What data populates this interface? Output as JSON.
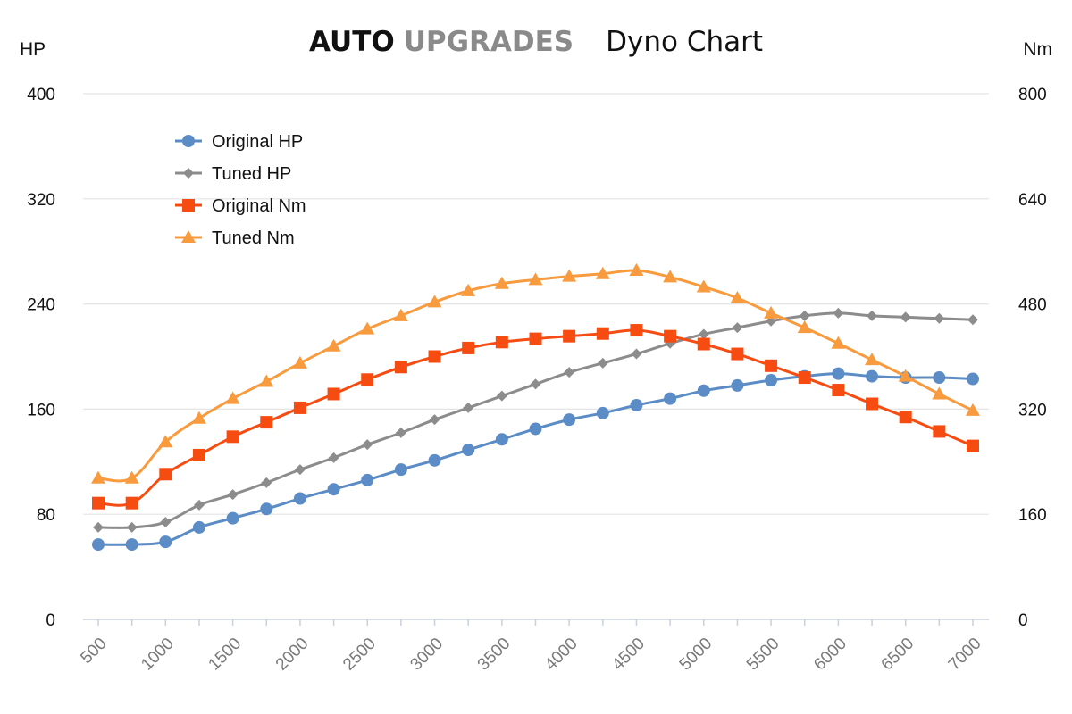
{
  "title": {
    "brand_part1": "AUTO",
    "brand_part2": "UPGRADES",
    "text": "Dyno Chart"
  },
  "chart_data": {
    "type": "line",
    "x": [
      500,
      750,
      1000,
      1250,
      1500,
      1750,
      2000,
      2250,
      2500,
      2750,
      3000,
      3250,
      3500,
      3750,
      4000,
      4250,
      4500,
      4750,
      5000,
      5250,
      5500,
      5750,
      6000,
      6250,
      6500,
      6750,
      7000
    ],
    "x_ticks": [
      "500",
      "1000",
      "1500",
      "2000",
      "2500",
      "3000",
      "3500",
      "4000",
      "4500",
      "5000",
      "5500",
      "6000",
      "6500",
      "7000"
    ],
    "x_tick_values": [
      500,
      1000,
      1500,
      2000,
      2500,
      3000,
      3500,
      4000,
      4500,
      5000,
      5500,
      6000,
      6500,
      7000
    ],
    "xlim": [
      500,
      7000
    ],
    "y_left": {
      "unit": "HP",
      "ylim": [
        0,
        400
      ],
      "ticks": [
        "0",
        "80",
        "160",
        "240",
        "320",
        "400"
      ],
      "tick_values": [
        0,
        80,
        160,
        240,
        320,
        400
      ]
    },
    "y_right": {
      "unit": "Nm",
      "ylim": [
        0,
        800
      ],
      "ticks": [
        "0",
        "160",
        "320",
        "480",
        "640",
        "800"
      ],
      "tick_values": [
        0,
        160,
        320,
        480,
        640,
        800
      ]
    },
    "grid": true,
    "legend_position": "top-left",
    "series": [
      {
        "name": "Original HP",
        "axis": "left",
        "color": "#5b8cc6",
        "marker": "circle",
        "values": [
          57,
          57,
          59,
          70,
          77,
          84,
          92,
          99,
          106,
          114,
          121,
          129,
          137,
          145,
          152,
          157,
          163,
          168,
          174,
          178,
          182,
          185,
          187,
          185,
          184,
          184,
          183
        ]
      },
      {
        "name": "Tuned HP",
        "axis": "left",
        "color": "#8c8c8c",
        "marker": "diamond",
        "values": [
          70,
          70,
          74,
          87,
          95,
          104,
          114,
          123,
          133,
          142,
          152,
          161,
          170,
          179,
          188,
          195,
          202,
          210,
          217,
          222,
          227,
          231,
          233,
          231,
          230,
          229,
          228
        ]
      },
      {
        "name": "Original Nm",
        "axis": "right",
        "color": "#f64c12",
        "marker": "square",
        "values": [
          177,
          177,
          221,
          250,
          278,
          300,
          322,
          343,
          365,
          384,
          400,
          413,
          422,
          427,
          431,
          435,
          440,
          431,
          419,
          404,
          386,
          368,
          349,
          328,
          308,
          286,
          264
        ]
      },
      {
        "name": "Tuned Nm",
        "axis": "right",
        "color": "#f89a3e",
        "marker": "triangle",
        "values": [
          215,
          215,
          270,
          306,
          336,
          362,
          390,
          416,
          442,
          462,
          483,
          500,
          511,
          517,
          522,
          526,
          531,
          521,
          506,
          489,
          466,
          444,
          420,
          395,
          370,
          343,
          318
        ]
      }
    ]
  }
}
